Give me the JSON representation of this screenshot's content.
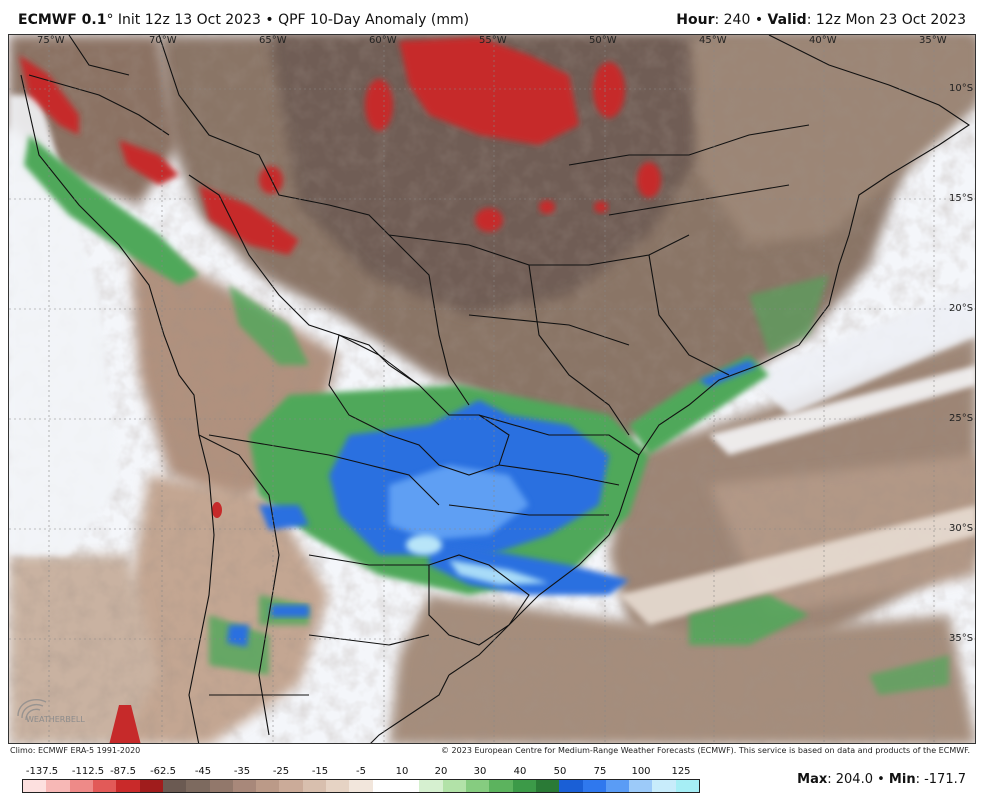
{
  "header": {
    "model": "ECMWF 0.1",
    "degree": "°",
    "init": "Init 12z 13 Oct 2023",
    "separator": "•",
    "product": "QPF 10-Day Anomaly (mm)",
    "hour_label": "Hour",
    "hour_value": ": 240",
    "valid_label": "Valid",
    "valid_value": ": 12z Mon 23 Oct 2023"
  },
  "map": {
    "longitude_labels": [
      "75°W",
      "70°W",
      "65°W",
      "60°W",
      "55°W",
      "50°W",
      "45°W",
      "40°W",
      "35°W"
    ],
    "latitude_labels": [
      "10°S",
      "15°S",
      "20°S",
      "25°S",
      "30°S",
      "35°S"
    ],
    "logo_text": "WEATHERBELL"
  },
  "footer": {
    "climo": "Climo: ECMWF ERA-5 1991-2020",
    "copyright": "© 2023 European Centre for Medium-Range Weather Forecasts (ECMWF). This service is based on data and products of the ECMWF.",
    "max_label": "Max",
    "max_value": ": 204.0",
    "sep": " • ",
    "min_label": "Min",
    "min_value": ": -171.7"
  },
  "colorbar": {
    "labels": [
      "-137.5",
      "-112.5",
      "-87.5",
      "-62.5",
      "-45",
      "-35",
      "-25",
      "-15",
      "-5",
      "10",
      "20",
      "30",
      "40",
      "50",
      "75",
      "100",
      "125"
    ],
    "colors": [
      "#fde0df",
      "#f7b8b6",
      "#ee8a88",
      "#e25a58",
      "#c92a2a",
      "#a01c1c",
      "#6b5a52",
      "#7d6a5f",
      "#92786b",
      "#a8887a",
      "#bb9a88",
      "#cbab99",
      "#d8bfae",
      "#e6d3c4",
      "#f2e6dc",
      "#ffffff",
      "#ffffff",
      "#d6f0d0",
      "#b2e2a8",
      "#86cc80",
      "#5cb35e",
      "#3c9a48",
      "#2a7a36",
      "#1a5fd6",
      "#2f78ee",
      "#5a9cf5",
      "#9ccaf9",
      "#c8ecfb",
      "#a6eef5"
    ]
  }
}
